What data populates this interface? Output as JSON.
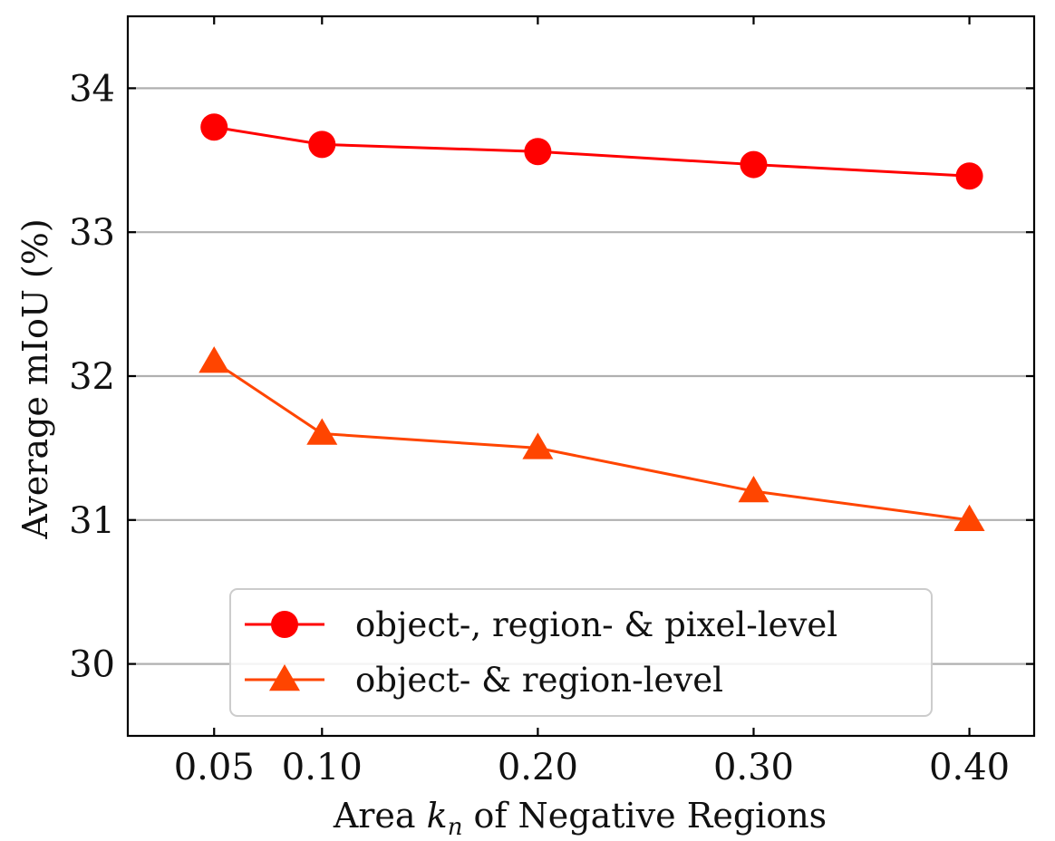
{
  "chart_data": {
    "type": "line",
    "title": "",
    "xlabel": {
      "pre": "Area ",
      "var": "k",
      "sub": "n",
      "post": " of Negative Regions"
    },
    "ylabel": "Average mIoU (%)",
    "x": [
      0.05,
      0.1,
      0.2,
      0.3,
      0.4
    ],
    "x_tick_labels": [
      "0.05",
      "0.10",
      "0.20",
      "0.30",
      "0.40"
    ],
    "xlim": [
      0.01,
      0.43
    ],
    "ylim": [
      29.5,
      34.5
    ],
    "y_ticks": [
      30,
      31,
      32,
      33,
      34
    ],
    "y_tick_labels": [
      "30",
      "31",
      "32",
      "33",
      "34"
    ],
    "grid": "horizontal",
    "legend_position": "lower-center",
    "series": [
      {
        "name": "object-, region- & pixel-level",
        "marker": "circle",
        "color": "#ff0000",
        "values": [
          33.73,
          33.61,
          33.56,
          33.47,
          33.39
        ]
      },
      {
        "name": "object- & region-level",
        "marker": "triangle",
        "color": "#ff4500",
        "values": [
          32.1,
          31.6,
          31.5,
          31.2,
          31.0
        ]
      }
    ]
  }
}
